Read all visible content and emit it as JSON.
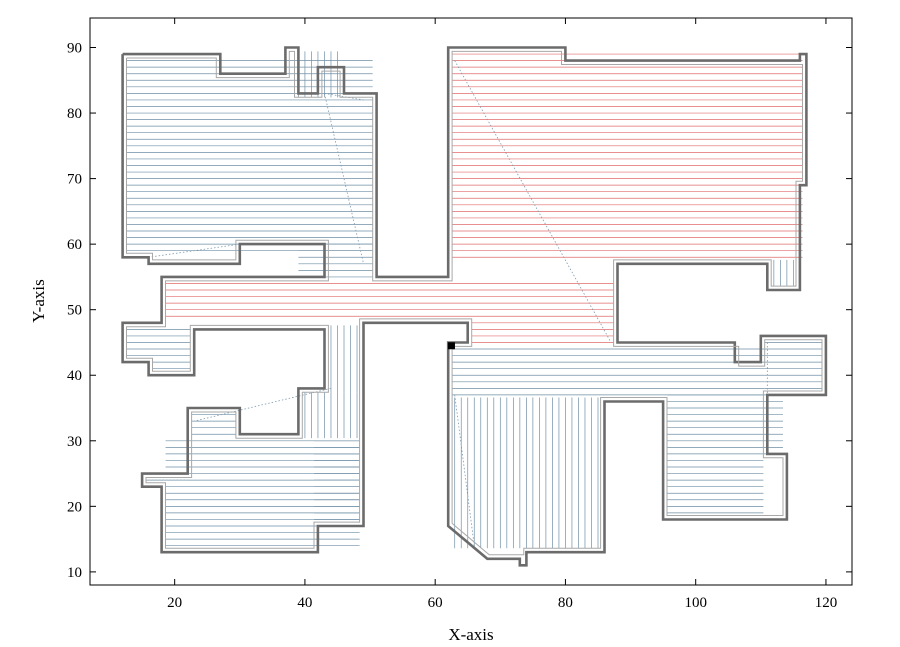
{
  "chart_data": {
    "type": "line",
    "title": "",
    "xlabel": "X-axis",
    "ylabel": "Y-axis",
    "xlim": [
      7,
      124
    ],
    "ylim": [
      8,
      94.5
    ],
    "xticks": [
      20,
      40,
      60,
      80,
      100,
      120
    ],
    "yticks": [
      10,
      20,
      30,
      40,
      50,
      60,
      70,
      80,
      90
    ],
    "grid": false,
    "colors": {
      "boundary": "#6b6b6b",
      "inner_offset": "#a8a8a8",
      "hatch_blue": "#6f8fa6",
      "hatch_red": "#e06b6b",
      "transit": "#7a9ab0",
      "start_marker": "#000000"
    },
    "series": [
      {
        "role": "workspace-boundary",
        "points": [
          [
            12,
            89
          ],
          [
            27,
            89
          ],
          [
            27,
            86
          ],
          [
            37,
            86
          ],
          [
            37,
            90
          ],
          [
            39,
            90
          ],
          [
            39,
            83
          ],
          [
            42,
            83
          ],
          [
            42,
            87
          ],
          [
            46,
            87
          ],
          [
            46,
            83
          ],
          [
            51,
            83
          ],
          [
            51,
            55
          ],
          [
            62,
            55
          ],
          [
            62,
            90
          ],
          [
            80,
            90
          ],
          [
            80,
            88
          ],
          [
            116,
            88
          ],
          [
            116,
            89
          ],
          [
            117,
            89
          ],
          [
            117,
            69
          ],
          [
            116,
            69
          ],
          [
            116,
            53
          ],
          [
            111,
            53
          ],
          [
            111,
            57
          ],
          [
            88,
            57
          ],
          [
            88,
            45
          ],
          [
            106,
            45
          ],
          [
            106,
            42
          ],
          [
            110,
            42
          ],
          [
            110,
            46
          ],
          [
            120,
            46
          ],
          [
            120,
            37
          ],
          [
            111,
            37
          ],
          [
            111,
            28
          ],
          [
            114,
            28
          ],
          [
            114,
            18
          ],
          [
            95,
            18
          ],
          [
            95,
            36
          ],
          [
            86,
            36
          ],
          [
            86,
            13
          ],
          [
            74,
            13
          ],
          [
            74,
            11
          ],
          [
            73,
            11
          ],
          [
            73,
            12
          ],
          [
            68,
            12
          ],
          [
            62,
            17
          ],
          [
            62,
            45
          ],
          [
            65,
            45
          ],
          [
            65,
            48
          ],
          [
            49,
            48
          ],
          [
            49,
            17
          ],
          [
            42,
            17
          ],
          [
            42,
            13
          ],
          [
            18,
            13
          ],
          [
            18,
            23
          ],
          [
            15,
            23
          ],
          [
            15,
            25
          ],
          [
            22,
            25
          ],
          [
            22,
            35
          ],
          [
            30,
            35
          ],
          [
            30,
            31
          ],
          [
            39,
            31
          ],
          [
            39,
            38
          ],
          [
            43,
            38
          ],
          [
            43,
            47
          ],
          [
            23,
            47
          ],
          [
            23,
            40
          ],
          [
            16,
            40
          ],
          [
            16,
            42
          ],
          [
            12,
            42
          ],
          [
            12,
            48
          ],
          [
            18,
            48
          ],
          [
            18,
            55
          ],
          [
            43,
            55
          ],
          [
            43,
            60
          ],
          [
            30,
            60
          ],
          [
            30,
            57
          ],
          [
            16,
            57
          ],
          [
            16,
            58
          ],
          [
            12,
            58
          ],
          [
            12,
            89
          ]
        ]
      },
      {
        "role": "inner-offset",
        "points": [
          [
            12.6,
            88.4
          ],
          [
            26.4,
            88.4
          ],
          [
            26.4,
            85.4
          ],
          [
            37.6,
            85.4
          ],
          [
            37.6,
            89.4
          ],
          [
            38.4,
            89.4
          ],
          [
            38.4,
            82.4
          ],
          [
            42.6,
            82.4
          ],
          [
            42.6,
            86.4
          ],
          [
            45.4,
            86.4
          ],
          [
            45.4,
            82.4
          ],
          [
            50.4,
            82.4
          ],
          [
            50.4,
            54.4
          ],
          [
            62.6,
            54.4
          ],
          [
            62.6,
            89.4
          ],
          [
            79.4,
            89.4
          ],
          [
            79.4,
            87.4
          ],
          [
            116.4,
            87.4
          ],
          [
            116.4,
            69.6
          ],
          [
            115.4,
            69.6
          ],
          [
            115.4,
            53.6
          ],
          [
            111.6,
            53.6
          ],
          [
            111.6,
            57.6
          ],
          [
            87.4,
            57.6
          ],
          [
            87.4,
            44.4
          ],
          [
            106.6,
            44.4
          ],
          [
            106.6,
            41.4
          ],
          [
            110.6,
            41.4
          ],
          [
            110.6,
            45.4
          ],
          [
            119.4,
            45.4
          ],
          [
            119.4,
            37.6
          ],
          [
            110.4,
            37.6
          ],
          [
            110.4,
            27.4
          ],
          [
            113.4,
            27.4
          ],
          [
            113.4,
            18.6
          ],
          [
            95.6,
            18.6
          ],
          [
            95.6,
            36.6
          ],
          [
            85.4,
            36.6
          ],
          [
            85.4,
            13.6
          ],
          [
            73.6,
            13.6
          ],
          [
            73.6,
            12.6
          ],
          [
            68.3,
            12.6
          ],
          [
            62.6,
            17.4
          ],
          [
            62.6,
            44.4
          ],
          [
            65.6,
            44.4
          ],
          [
            65.6,
            48.6
          ],
          [
            48.4,
            48.6
          ],
          [
            48.4,
            17.6
          ],
          [
            41.4,
            17.6
          ],
          [
            41.4,
            13.6
          ],
          [
            18.6,
            13.6
          ],
          [
            18.6,
            23.6
          ],
          [
            15.6,
            23.6
          ],
          [
            15.6,
            24.4
          ],
          [
            22.6,
            24.4
          ],
          [
            22.6,
            34.4
          ],
          [
            29.4,
            34.4
          ],
          [
            29.4,
            30.4
          ],
          [
            39.6,
            30.4
          ],
          [
            39.6,
            37.4
          ],
          [
            43.6,
            37.4
          ],
          [
            43.6,
            47.6
          ],
          [
            22.4,
            47.6
          ],
          [
            22.4,
            40.6
          ],
          [
            16.6,
            40.6
          ],
          [
            16.6,
            42.6
          ],
          [
            12.6,
            42.6
          ],
          [
            12.6,
            47.4
          ],
          [
            18.6,
            47.4
          ],
          [
            18.6,
            54.4
          ],
          [
            43.6,
            54.4
          ],
          [
            43.6,
            60.6
          ],
          [
            29.4,
            60.6
          ],
          [
            29.4,
            57.6
          ],
          [
            16.6,
            57.6
          ],
          [
            16.6,
            58.6
          ],
          [
            12.6,
            58.6
          ],
          [
            12.6,
            88.4
          ]
        ]
      },
      {
        "role": "start",
        "points": [
          [
            62.5,
            44.5
          ]
        ]
      }
    ],
    "hatching": [
      {
        "color": "blue",
        "orientation": "horizontal",
        "x": [
          12.6,
          50.4
        ],
        "y": [
          58.6,
          88.4
        ],
        "step": 1
      },
      {
        "color": "blue",
        "orientation": "horizontal",
        "x": [
          39.0,
          50.4
        ],
        "y": [
          54.4,
          60.6
        ],
        "step": 1
      },
      {
        "color": "red",
        "orientation": "horizontal",
        "x": [
          62.6,
          116.4
        ],
        "y": [
          57.6,
          89.4
        ],
        "step": 1
      },
      {
        "color": "red",
        "orientation": "horizontal",
        "x": [
          18.6,
          87.4
        ],
        "y": [
          48.6,
          54.4
        ],
        "step": 1
      },
      {
        "color": "red",
        "orientation": "horizontal",
        "x": [
          65.6,
          87.4
        ],
        "y": [
          44.4,
          48.6
        ],
        "step": 1
      },
      {
        "color": "blue",
        "orientation": "horizontal",
        "x": [
          62.6,
          110.6
        ],
        "y": [
          36.6,
          44.4
        ],
        "step": 1
      },
      {
        "color": "blue",
        "orientation": "horizontal",
        "x": [
          95.6,
          110.4
        ],
        "y": [
          18.6,
          37.6
        ],
        "step": 1
      },
      {
        "color": "blue",
        "orientation": "horizontal",
        "x": [
          110.6,
          119.4
        ],
        "y": [
          37.6,
          45.4
        ],
        "step": 1
      },
      {
        "color": "blue",
        "orientation": "horizontal",
        "x": [
          110.4,
          113.4
        ],
        "y": [
          27.4,
          37.6
        ],
        "step": 1
      },
      {
        "color": "blue",
        "orientation": "horizontal",
        "x": [
          12.6,
          22.4
        ],
        "y": [
          42.6,
          47.4
        ],
        "step": 1
      },
      {
        "color": "blue",
        "orientation": "horizontal",
        "x": [
          16.6,
          22.4
        ],
        "y": [
          40.6,
          42.6
        ],
        "step": 1
      },
      {
        "color": "blue",
        "orientation": "horizontal",
        "x": [
          18.6,
          48.4
        ],
        "y": [
          13.6,
          30.4
        ],
        "step": 1
      },
      {
        "color": "blue",
        "orientation": "horizontal",
        "x": [
          22.6,
          29.4
        ],
        "y": [
          30.4,
          34.4
        ],
        "step": 1
      },
      {
        "color": "blue",
        "orientation": "horizontal",
        "x": [
          15.6,
          18.6
        ],
        "y": [
          23.6,
          24.4
        ],
        "step": 1
      },
      {
        "color": "blue",
        "orientation": "horizontal",
        "x": [
          41.4,
          48.4
        ],
        "y": [
          17.6,
          30.4
        ],
        "step": 1
      },
      {
        "color": "blue",
        "orientation": "vertical",
        "x": [
          39.6,
          48.4
        ],
        "y": [
          30.4,
          37.4
        ],
        "step": 1
      },
      {
        "color": "blue",
        "orientation": "vertical",
        "x": [
          43.6,
          48.4
        ],
        "y": [
          37.4,
          47.6
        ],
        "step": 1
      },
      {
        "color": "blue",
        "orientation": "vertical",
        "x": [
          62.6,
          85.4
        ],
        "y": [
          13.6,
          36.6
        ],
        "step": 1
      },
      {
        "color": "blue",
        "orientation": "vertical",
        "x": [
          111.6,
          115.4
        ],
        "y": [
          53.6,
          57.6
        ],
        "step": 1
      },
      {
        "color": "blue",
        "orientation": "vertical",
        "x": [
          38.4,
          45.4
        ],
        "y": [
          82.4,
          89.4
        ],
        "step": 1
      }
    ],
    "transits": [
      [
        [
          30,
          60
        ],
        [
          16,
          58
        ]
      ],
      [
        [
          43,
          83
        ],
        [
          49,
          82
        ]
      ],
      [
        [
          43,
          83
        ],
        [
          49,
          57
        ]
      ],
      [
        [
          63,
          88
        ],
        [
          87,
          45
        ]
      ],
      [
        [
          44,
          38
        ],
        [
          23,
          33
        ]
      ],
      [
        [
          63,
          37
        ],
        [
          66,
          14
        ]
      ],
      [
        [
          16,
          24
        ],
        [
          22,
          24
        ]
      ],
      [
        [
          111,
          45
        ],
        [
          111,
          37
        ]
      ]
    ]
  }
}
